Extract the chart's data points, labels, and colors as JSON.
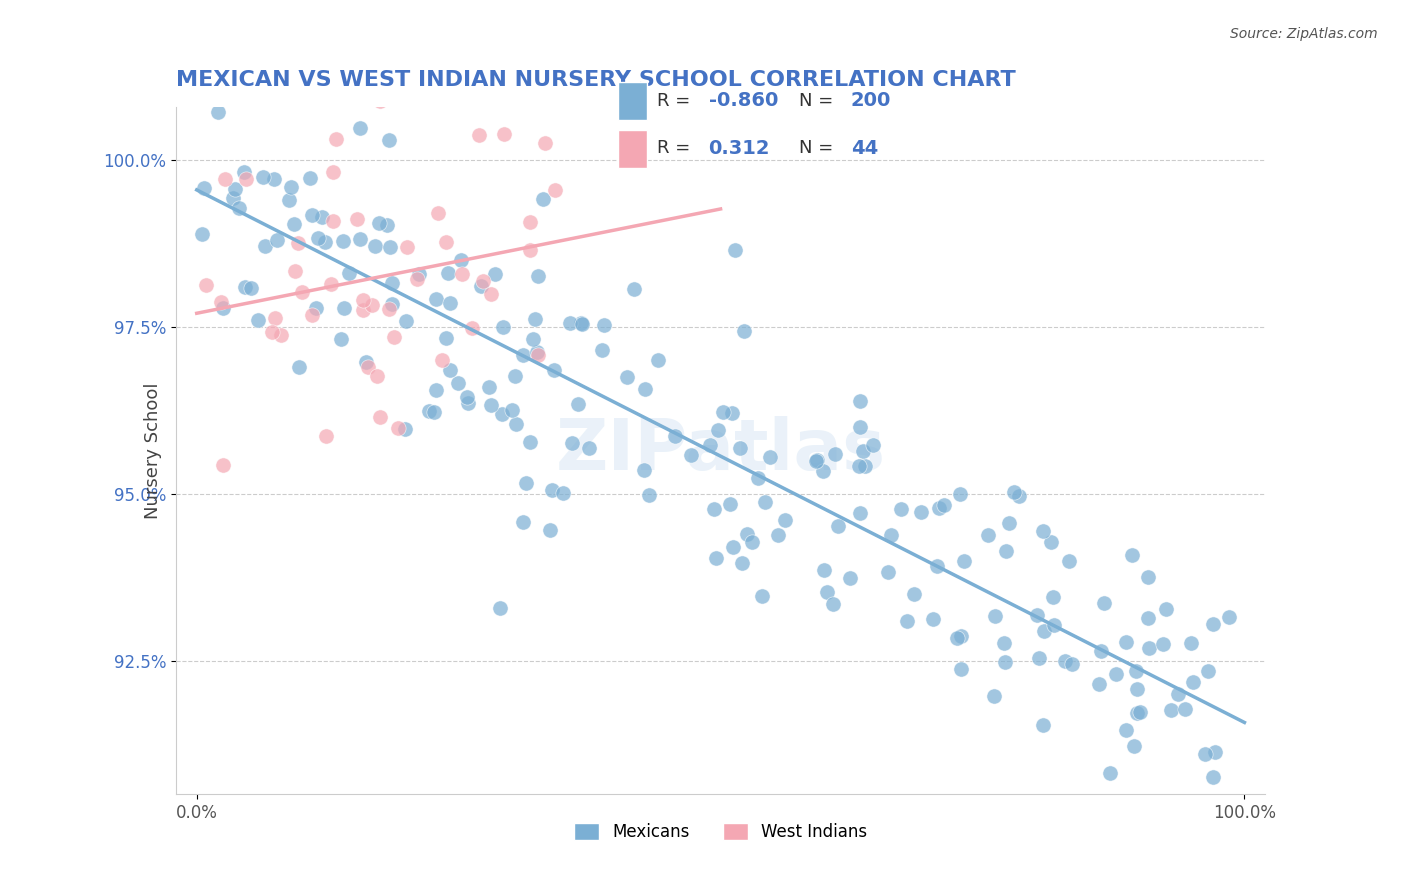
{
  "title": "MEXICAN VS WEST INDIAN NURSERY SCHOOL CORRELATION CHART",
  "source": "Source: ZipAtlas.com",
  "ylabel": "Nursery School",
  "ytick_labels": [
    "92.5%",
    "95.0%",
    "97.5%",
    "100.0%"
  ],
  "ytick_values": [
    0.925,
    0.95,
    0.975,
    1.0
  ],
  "xrange": [
    0.0,
    1.0
  ],
  "yrange": [
    0.905,
    1.008
  ],
  "legend_R1": "-0.860",
  "legend_N1": "200",
  "legend_R2": "0.312",
  "legend_N2": "44",
  "blue_color": "#7BAFD4",
  "pink_color": "#F4A7B3",
  "title_color": "#4472C4",
  "value_color": "#4472C4",
  "watermark": "ZIPatlas",
  "blue_scatter_seed": 42,
  "pink_scatter_seed": 7,
  "blue_n": 200,
  "pink_n": 44
}
